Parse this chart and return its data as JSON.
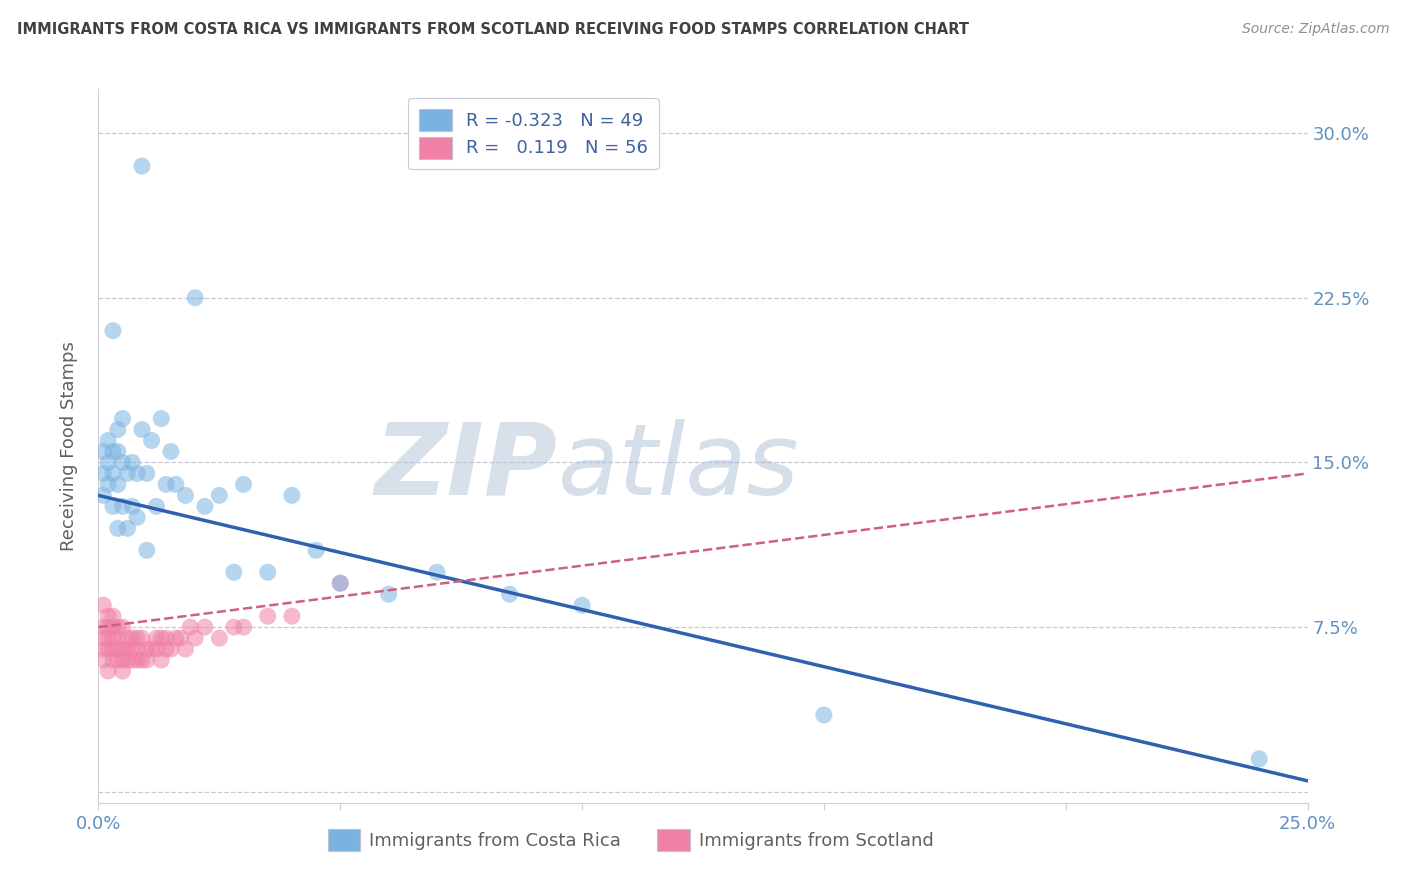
{
  "title": "IMMIGRANTS FROM COSTA RICA VS IMMIGRANTS FROM SCOTLAND RECEIVING FOOD STAMPS CORRELATION CHART",
  "source": "Source: ZipAtlas.com",
  "ylabel": "Receiving Food Stamps",
  "xlim": [
    0.0,
    0.25
  ],
  "ylim": [
    -0.005,
    0.32
  ],
  "xticks": [
    0.0,
    0.05,
    0.1,
    0.15,
    0.2,
    0.25
  ],
  "xtick_labels": [
    "0.0%",
    "",
    "",
    "",
    "",
    "25.0%"
  ],
  "yticks": [
    0.0,
    0.075,
    0.15,
    0.225,
    0.3
  ],
  "ytick_labels": [
    "",
    "7.5%",
    "15.0%",
    "22.5%",
    "30.0%"
  ],
  "watermark_zip": "ZIP",
  "watermark_atlas": "atlas",
  "costa_rica_color": "#7ab3e0",
  "scotland_color": "#f080a8",
  "trend_costa_rica_color": "#3060b0",
  "trend_scotland_color": "#d06080",
  "background_color": "#ffffff",
  "grid_color": "#c8c8d8",
  "title_color": "#404040",
  "source_color": "#909090",
  "tick_label_color": "#6090c0",
  "legend_text_color": "#4060a0",
  "costa_rica_x": [
    0.001,
    0.001,
    0.001,
    0.002,
    0.002,
    0.002,
    0.003,
    0.003,
    0.003,
    0.003,
    0.004,
    0.004,
    0.004,
    0.004,
    0.005,
    0.005,
    0.005,
    0.006,
    0.006,
    0.007,
    0.007,
    0.008,
    0.008,
    0.009,
    0.009,
    0.01,
    0.01,
    0.011,
    0.012,
    0.013,
    0.014,
    0.015,
    0.016,
    0.018,
    0.02,
    0.022,
    0.025,
    0.028,
    0.03,
    0.035,
    0.04,
    0.045,
    0.05,
    0.06,
    0.07,
    0.085,
    0.1,
    0.15,
    0.24
  ],
  "costa_rica_y": [
    0.135,
    0.145,
    0.155,
    0.14,
    0.15,
    0.16,
    0.13,
    0.145,
    0.155,
    0.21,
    0.12,
    0.14,
    0.155,
    0.165,
    0.13,
    0.15,
    0.17,
    0.12,
    0.145,
    0.13,
    0.15,
    0.125,
    0.145,
    0.165,
    0.285,
    0.11,
    0.145,
    0.16,
    0.13,
    0.17,
    0.14,
    0.155,
    0.14,
    0.135,
    0.225,
    0.13,
    0.135,
    0.1,
    0.14,
    0.1,
    0.135,
    0.11,
    0.095,
    0.09,
    0.1,
    0.09,
    0.085,
    0.035,
    0.015
  ],
  "scotland_x": [
    0.001,
    0.001,
    0.001,
    0.001,
    0.001,
    0.002,
    0.002,
    0.002,
    0.002,
    0.002,
    0.003,
    0.003,
    0.003,
    0.003,
    0.003,
    0.004,
    0.004,
    0.004,
    0.004,
    0.005,
    0.005,
    0.005,
    0.005,
    0.006,
    0.006,
    0.006,
    0.007,
    0.007,
    0.007,
    0.008,
    0.008,
    0.008,
    0.009,
    0.009,
    0.01,
    0.01,
    0.011,
    0.012,
    0.012,
    0.013,
    0.013,
    0.014,
    0.014,
    0.015,
    0.016,
    0.017,
    0.018,
    0.019,
    0.02,
    0.022,
    0.025,
    0.028,
    0.03,
    0.035,
    0.04,
    0.05
  ],
  "scotland_y": [
    0.06,
    0.065,
    0.07,
    0.075,
    0.085,
    0.055,
    0.065,
    0.07,
    0.075,
    0.08,
    0.06,
    0.065,
    0.07,
    0.075,
    0.08,
    0.06,
    0.065,
    0.07,
    0.075,
    0.055,
    0.06,
    0.065,
    0.075,
    0.06,
    0.065,
    0.07,
    0.06,
    0.065,
    0.07,
    0.06,
    0.065,
    0.07,
    0.06,
    0.07,
    0.06,
    0.065,
    0.065,
    0.065,
    0.07,
    0.06,
    0.07,
    0.065,
    0.07,
    0.065,
    0.07,
    0.07,
    0.065,
    0.075,
    0.07,
    0.075,
    0.07,
    0.075,
    0.075,
    0.08,
    0.08,
    0.095
  ],
  "cr_trend_x0": 0.0,
  "cr_trend_y0": 0.135,
  "cr_trend_x1": 0.25,
  "cr_trend_y1": 0.005,
  "sc_trend_x0": 0.0,
  "sc_trend_y0": 0.075,
  "sc_trend_x1": 0.25,
  "sc_trend_y1": 0.145
}
